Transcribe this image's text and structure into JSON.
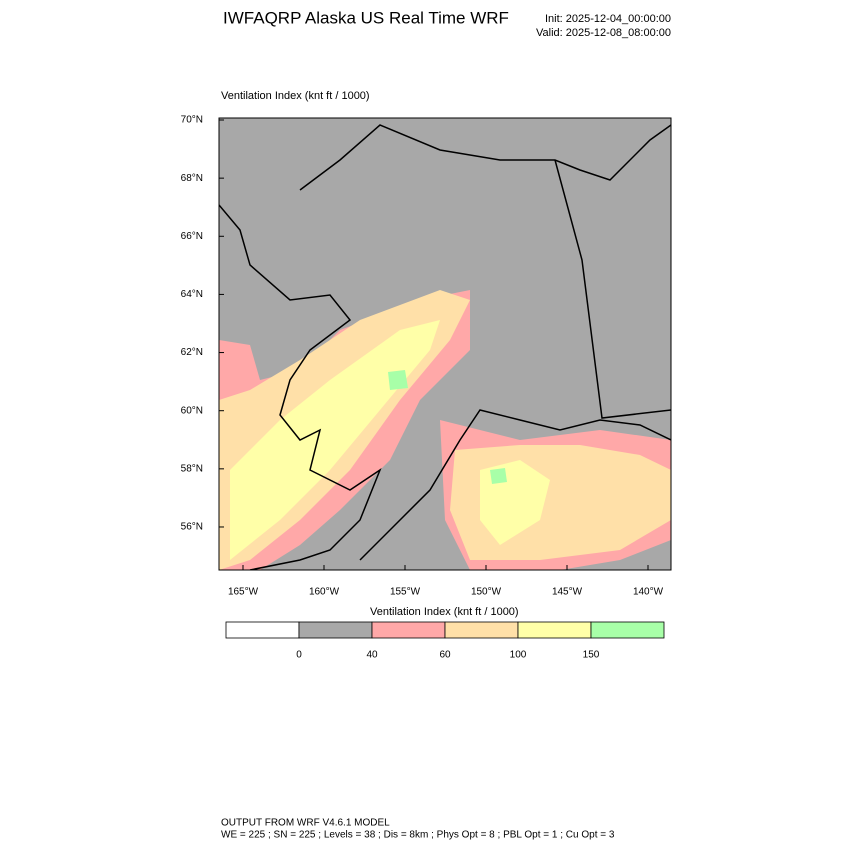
{
  "header": {
    "title": "IWFAQRP Alaska US Real Time WRF",
    "init": "Init: 2025-12-04_00:00:00",
    "valid": "Valid: 2025-12-08_08:00:00"
  },
  "map": {
    "field_label": "Ventilation Index   (knt ft / 1000)",
    "lat_ticks": [
      {
        "value": 70,
        "label": "70°N"
      },
      {
        "value": 68,
        "label": "68°N"
      },
      {
        "value": 66,
        "label": "66°N"
      },
      {
        "value": 64,
        "label": "64°N"
      },
      {
        "value": 62,
        "label": "62°N"
      },
      {
        "value": 60,
        "label": "60°N"
      },
      {
        "value": 58,
        "label": "58°N"
      },
      {
        "value": 56,
        "label": "56°N"
      }
    ],
    "lon_ticks": [
      {
        "value": -165,
        "label": "165°W"
      },
      {
        "value": -160,
        "label": "160°W"
      },
      {
        "value": -155,
        "label": "155°W"
      },
      {
        "value": -150,
        "label": "150°W"
      },
      {
        "value": -145,
        "label": "145°W"
      },
      {
        "value": -140,
        "label": "140°W"
      }
    ]
  },
  "colorbar": {
    "title": "Ventilation Index  (knt ft / 1000)",
    "levels": [
      0,
      40,
      60,
      100,
      150
    ],
    "colors": [
      "#ffffff",
      "#a8a8a8",
      "#ffa8a8",
      "#ffe0a8",
      "#ffffa8",
      "#a8ffa8"
    ]
  },
  "footer": {
    "line1": "OUTPUT FROM WRF V4.6.1 MODEL",
    "line2": "WE = 225 ; SN = 225 ; Levels = 38 ; Dis = 8km ; Phys Opt = 8 ; PBL Opt = 1 ; Cu Opt = 3"
  }
}
